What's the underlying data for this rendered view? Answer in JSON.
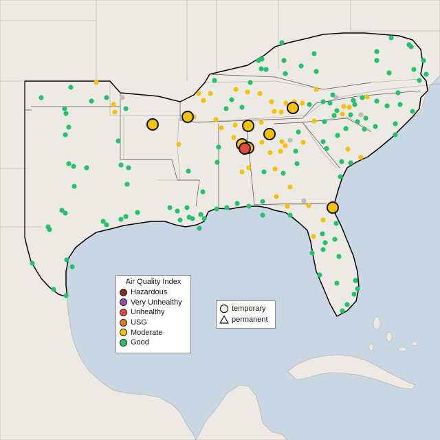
{
  "colors": {
    "water": "#c9d6e3",
    "land": "#ede9e5",
    "focus_land": "#f1edea",
    "border": "#bcb6b2",
    "outline": "#000000",
    "hazardous": "#7e2d2a",
    "very_unhealthy": "#8f4fb3",
    "unhealthy": "#e34b3f",
    "usg": "#e87a18",
    "moderate": "#f4c20d",
    "good": "#23c26b",
    "no_data": "#bdbdbd"
  },
  "legend": {
    "title": "Air Quality Index",
    "categories": [
      {
        "key": "hazardous",
        "label": "Hazardous"
      },
      {
        "key": "very_unhealthy",
        "label": "Very Unhealthy"
      },
      {
        "key": "unhealthy",
        "label": "Unhealthy"
      },
      {
        "key": "usg",
        "label": "USG"
      },
      {
        "key": "moderate",
        "label": "Moderate"
      },
      {
        "key": "good",
        "label": "Good"
      }
    ]
  },
  "monitor_types": {
    "temporary": "temporary",
    "permanent": "permanent"
  }
}
